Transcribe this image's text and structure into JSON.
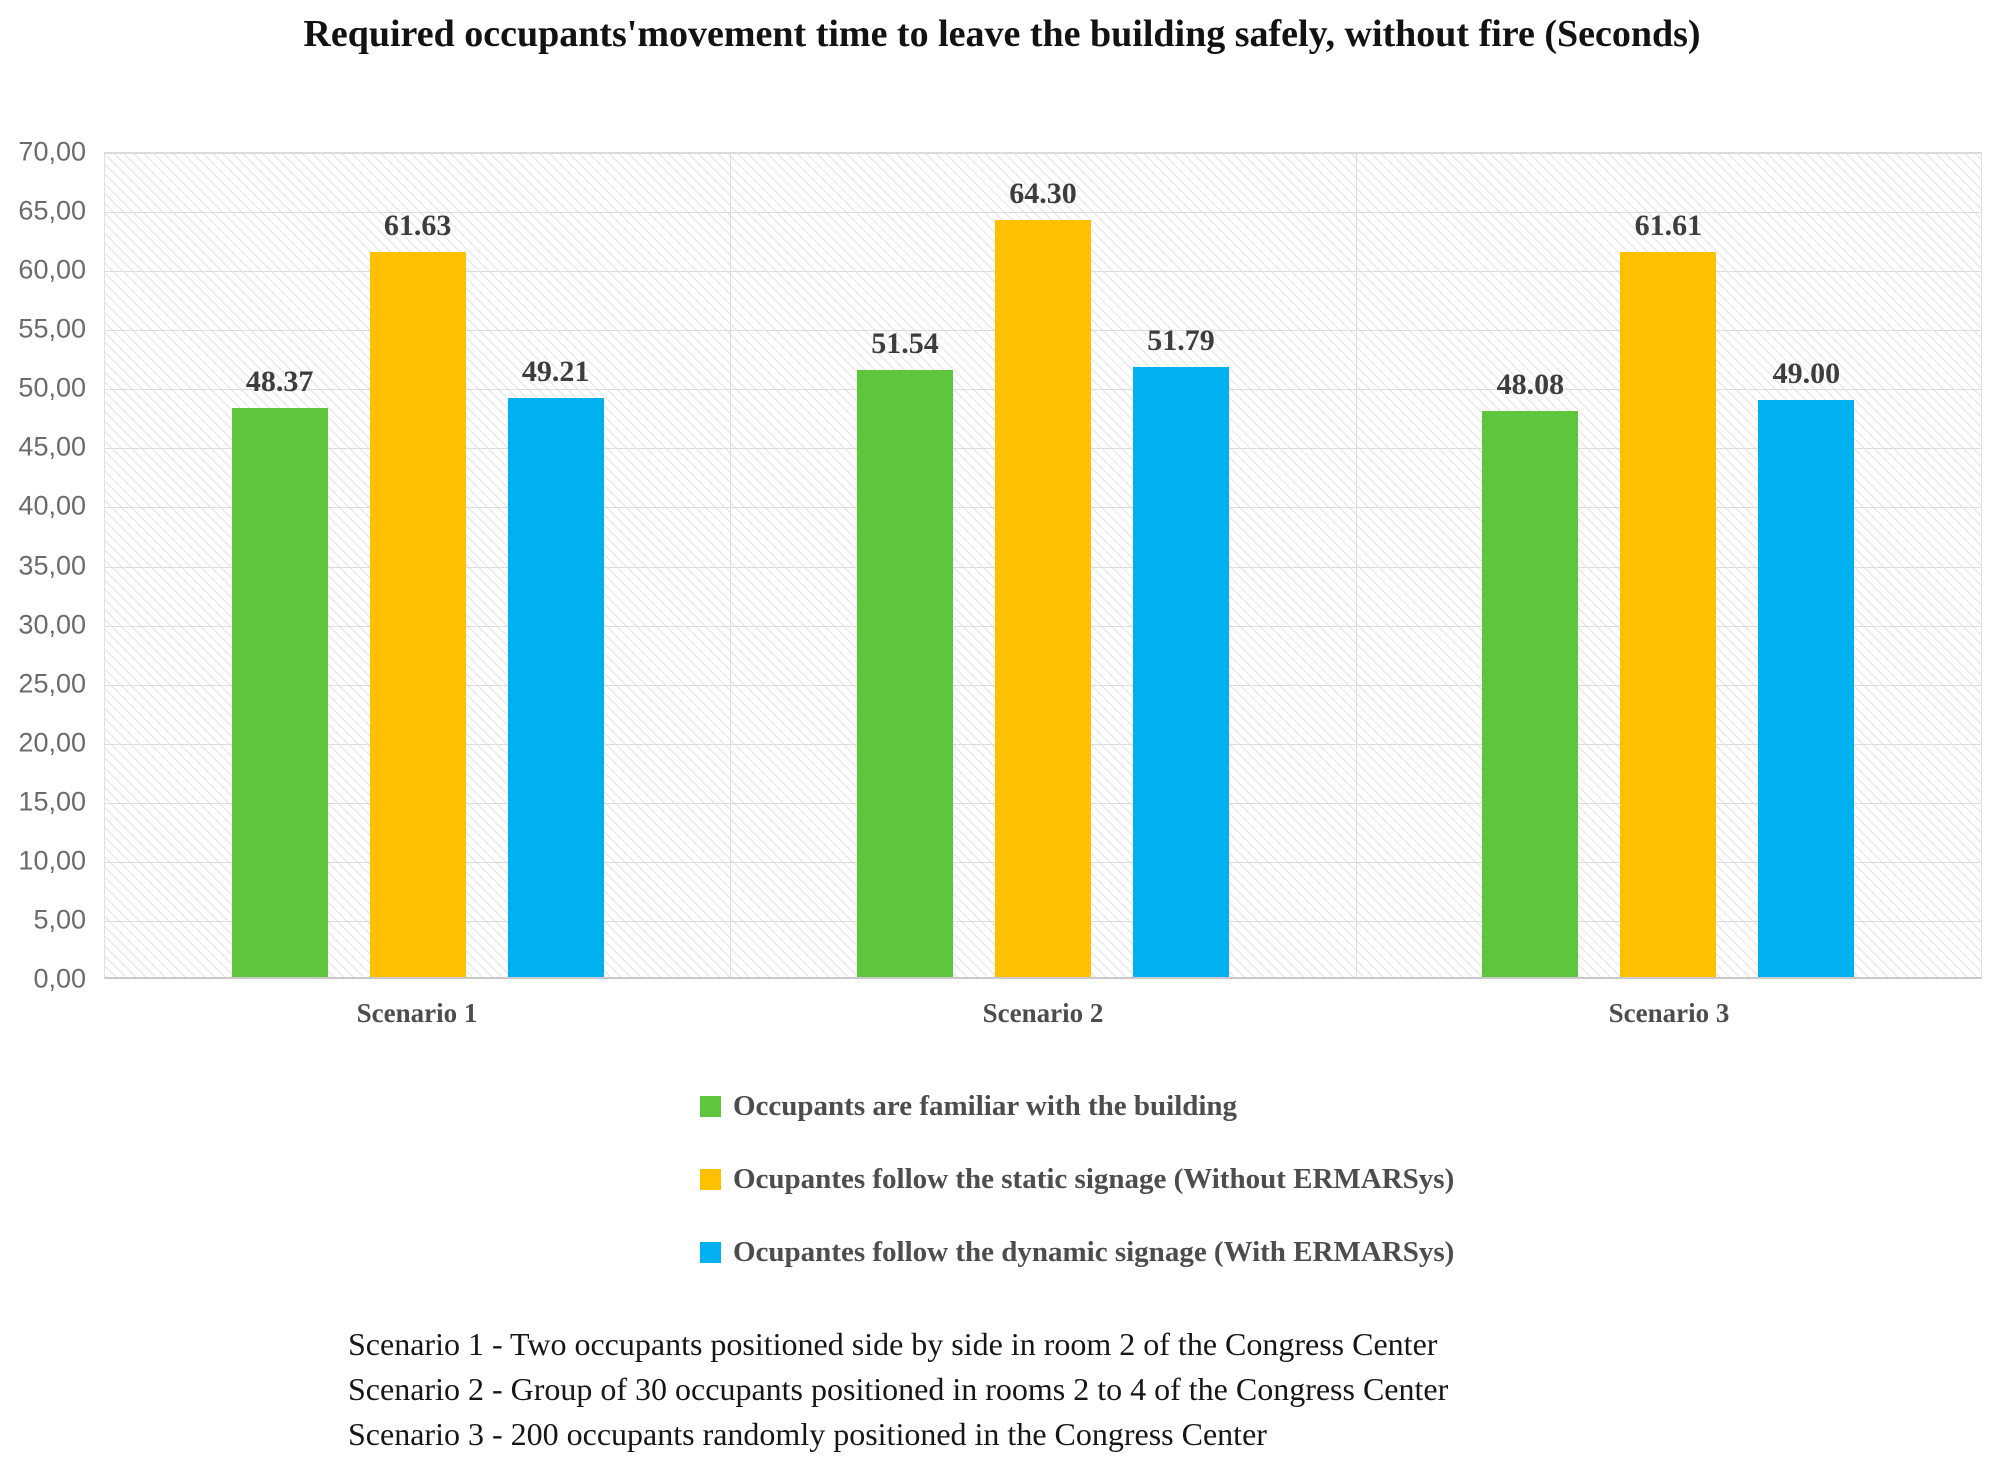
{
  "title": "Required occupants'movement time to leave the building safely, without fire (Seconds)",
  "chart_data": {
    "type": "bar",
    "title": "Required occupants'movement time to leave the building safely, without fire (Seconds)",
    "categories": [
      "Scenario 1",
      "Scenario 2",
      "Scenario 3"
    ],
    "series": [
      {
        "name": "Occupants are familiar with the building",
        "color": "#5EC63C",
        "values": [
          48.37,
          51.54,
          48.08
        ],
        "labels": [
          "48.37",
          "51.54",
          "48.08"
        ]
      },
      {
        "name": "Ocupantes follow the static signage (Without ERMARSys)",
        "color": "#FFC000",
        "values": [
          61.63,
          64.3,
          61.61
        ],
        "labels": [
          "61.63",
          "64.30",
          "61.61"
        ]
      },
      {
        "name": "Ocupantes follow the dynamic signage (With ERMARSys)",
        "color": "#00B0F0",
        "values": [
          49.21,
          51.79,
          49.0
        ],
        "labels": [
          "49.21",
          "51.79",
          "49.00"
        ]
      }
    ],
    "ylim": [
      0,
      70
    ],
    "ytick_step": 5,
    "ytick_labels": [
      "0,00",
      "5,00",
      "10,00",
      "15,00",
      "20,00",
      "25,00",
      "30,00",
      "35,00",
      "40,00",
      "45,00",
      "50,00",
      "55,00",
      "60,00",
      "65,00",
      "70,00"
    ],
    "grid": true,
    "legend_position": "bottom"
  },
  "footnotes": [
    "Scenario 1 - Two occupants positioned side by side in room 2 of the Congress Center",
    "Scenario 2 - Group of 30 occupants positioned in rooms 2 to 4 of the Congress Center",
    "Scenario 3 - 200 occupants randomly positioned in the Congress Center"
  ],
  "colors": {
    "gridline": "#dcdcdc",
    "axis_line": "#c9c9c9",
    "hatch_line": "#e9e9e9",
    "tick_text": "#6b6b6b",
    "label_text": "#3d3d3d",
    "category_text": "#4d4d4d",
    "title_text": "#121212"
  }
}
